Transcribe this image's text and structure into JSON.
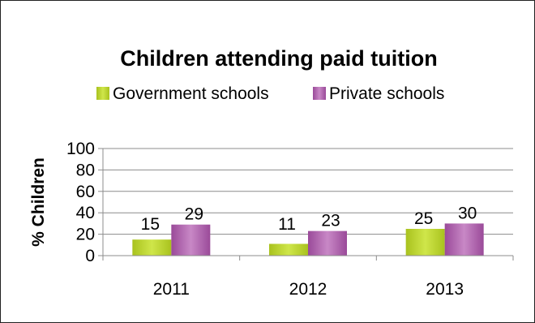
{
  "chart_data": {
    "type": "bar",
    "title": "Children attending paid tuition",
    "ylabel": "% Children",
    "xlabel": "",
    "categories": [
      "2011",
      "2012",
      "2013"
    ],
    "series": [
      {
        "name": "Government schools",
        "values": [
          15,
          11,
          25
        ],
        "color": "#bfd730"
      },
      {
        "name": "Private schools",
        "values": [
          29,
          23,
          30
        ],
        "color": "#b05aae"
      }
    ],
    "ylim": [
      0,
      100
    ],
    "yticks": [
      0,
      20,
      40,
      60,
      80,
      100
    ],
    "grid": true,
    "legend": "top",
    "data_labels": true
  }
}
